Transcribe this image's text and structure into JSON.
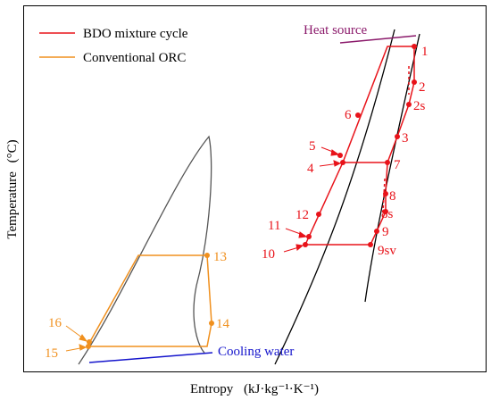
{
  "axes": {
    "xlabel": "Entropy",
    "xunit": "(kJ·kg⁻¹·K⁻¹)",
    "ylabel": "Temperature",
    "yunit": "(°C)"
  },
  "legend": {
    "items": [
      {
        "label": "BDO mixture cycle",
        "color": "#e8131a"
      },
      {
        "label": "Conventional ORC",
        "color": "#f0901e"
      }
    ]
  },
  "annotations": {
    "heat_source": "Heat source",
    "cooling_water": "Cooling water"
  },
  "colors": {
    "bdo": "#e8131a",
    "orc": "#f0901e",
    "heat_source": "#8b1a6b",
    "cooling_water": "#1515cc",
    "saturation": "#000000",
    "dome": "#555555"
  },
  "bdo_points": [
    "1",
    "2",
    "2s",
    "3",
    "4",
    "5",
    "6",
    "7",
    "8",
    "8s",
    "9",
    "9sv",
    "10",
    "11",
    "12"
  ],
  "orc_points": [
    "13",
    "14",
    "15",
    "16"
  ]
}
